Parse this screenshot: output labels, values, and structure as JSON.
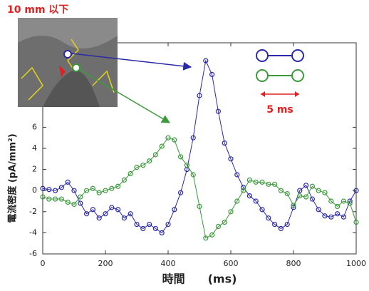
{
  "chart_data": {
    "type": "line",
    "x_label": "時間　　(ms)",
    "y_label": "電流密度 (pA/mm²)",
    "annotations": [
      "10 mm 以下",
      "5 ms"
    ],
    "x": [
      0,
      20,
      40,
      60,
      80,
      100,
      120,
      140,
      160,
      180,
      200,
      220,
      240,
      260,
      280,
      300,
      320,
      340,
      360,
      380,
      400,
      420,
      440,
      460,
      480,
      500,
      520,
      540,
      560,
      580,
      600,
      620,
      640,
      660,
      680,
      700,
      720,
      740,
      760,
      780,
      800,
      820,
      840,
      860,
      880,
      900,
      920,
      940,
      960,
      980,
      1000
    ],
    "series": [
      {
        "color": "#2a2aa8",
        "values": [
          0.2,
          0.1,
          0,
          0.3,
          0.8,
          0,
          -1.2,
          -2.2,
          -1.8,
          -2.6,
          -2.2,
          -1.6,
          -1.8,
          -2.6,
          -2.2,
          -3.2,
          -3.6,
          -3.2,
          -3.6,
          -4,
          -3.2,
          -1.8,
          -0.2,
          2,
          5,
          9,
          12.3,
          11,
          7.5,
          4.5,
          3,
          1.5,
          0.3,
          -0.5,
          -1,
          -1.8,
          -2.6,
          -3.2,
          -3.6,
          -3.2,
          -1.6,
          0,
          0.5,
          -0.8,
          -1.8,
          -2.4,
          -2.5,
          -2.2,
          -2.5,
          -1,
          0
        ]
      },
      {
        "color": "#3c9a3c",
        "values": [
          -0.6,
          -0.8,
          -0.8,
          -0.8,
          -1.1,
          -1.3,
          -0.6,
          0,
          0.2,
          -0.2,
          0,
          0.2,
          0.4,
          1,
          1.6,
          2.2,
          2.4,
          2.8,
          3.4,
          4.2,
          5,
          4.8,
          3.2,
          2.4,
          1.5,
          -1.5,
          -4.5,
          -4.2,
          -3.4,
          -3,
          -2,
          -1,
          0,
          1,
          0.8,
          0.8,
          0.6,
          0.6,
          0,
          -0.3,
          -1.4,
          -0.5,
          -0.6,
          0.4,
          0,
          -0.2,
          -1,
          -1.5,
          -1,
          -1.2,
          -3
        ]
      }
    ],
    "xlim": [
      0,
      1000
    ],
    "xticks": [
      0,
      200,
      400,
      600,
      800,
      1000
    ],
    "ylim": [
      -6,
      14
    ],
    "yticks": [
      -6,
      -4,
      -2,
      0,
      2,
      4,
      6
    ]
  }
}
